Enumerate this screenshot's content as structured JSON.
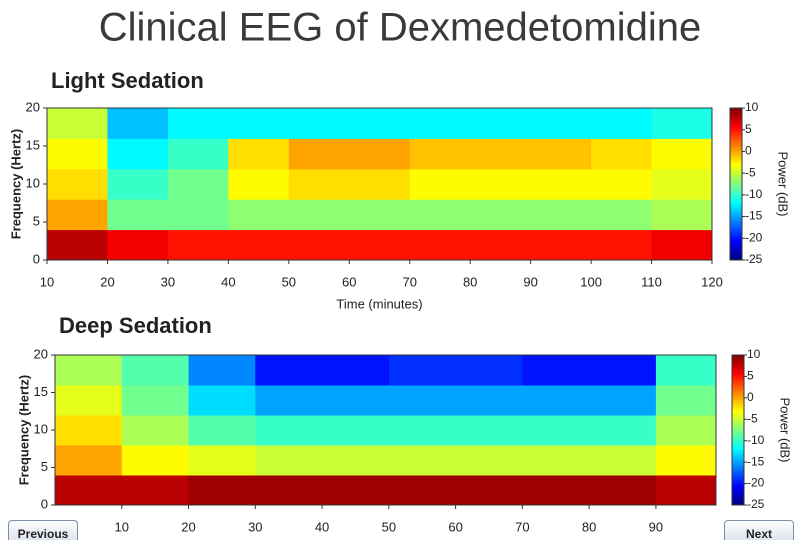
{
  "title": "Clinical EEG of Dexmedetomidine",
  "navigation": {
    "previous": "Previous",
    "next": "Next"
  },
  "chart_data": [
    {
      "type": "heatmap",
      "title": "Light Sedation",
      "ylabel": "Frequency (Hertz)",
      "xlabel": "Time (minutes)",
      "colormap": "jet",
      "xbins": [
        10,
        20,
        30,
        40,
        50,
        60,
        70,
        80,
        90,
        100,
        110,
        120
      ],
      "ybins": [
        0,
        4,
        8,
        12,
        16,
        20
      ],
      "values": [
        [
          8,
          6,
          5,
          5,
          5,
          5,
          5,
          5,
          5,
          5,
          6
        ],
        [
          0,
          -8,
          -8,
          -7,
          -7,
          -7,
          -7,
          -7,
          -7,
          -7,
          -6
        ],
        [
          -2,
          -10,
          -8,
          -3,
          -2,
          -2,
          -3,
          -3,
          -3,
          -3,
          -4
        ],
        [
          -3,
          -12,
          -10,
          -2,
          0,
          0,
          -1,
          -1,
          -1,
          -2,
          -3
        ],
        [
          -5,
          -14,
          -12,
          -12,
          -12,
          -12,
          -12,
          -12,
          -12,
          -12,
          -11
        ]
      ],
      "xlim": [
        10,
        120
      ],
      "xticks": [
        10,
        20,
        30,
        40,
        50,
        60,
        70,
        80,
        90,
        100,
        110,
        120
      ],
      "ylim": [
        0,
        20
      ],
      "yticks": [
        0,
        5,
        10,
        15,
        20
      ],
      "colorbar_label": "Power (dB)",
      "clim": [
        -25,
        10
      ],
      "cticks": [
        10,
        5,
        0,
        -5,
        -10,
        -15,
        -20,
        -25
      ]
    },
    {
      "type": "heatmap",
      "title": "Deep Sedation",
      "ylabel": "Frequency (Hertz)",
      "colormap": "jet",
      "xbins": [
        0,
        10,
        20,
        30,
        40,
        50,
        60,
        70,
        80,
        90,
        99
      ],
      "ybins": [
        0,
        4,
        8,
        12,
        16,
        20
      ],
      "values": [
        [
          8,
          8,
          9,
          9,
          9,
          9,
          9,
          9,
          9,
          8
        ],
        [
          0,
          -3,
          -4,
          -5,
          -5,
          -5,
          -5,
          -5,
          -5,
          -3
        ],
        [
          -2,
          -6,
          -9,
          -10,
          -10,
          -10,
          -10,
          -10,
          -10,
          -6
        ],
        [
          -4,
          -8,
          -13,
          -15,
          -15,
          -15,
          -15,
          -15,
          -15,
          -8
        ],
        [
          -6,
          -9,
          -16,
          -20,
          -20,
          -19,
          -19,
          -20,
          -20,
          -10
        ]
      ],
      "xlim": [
        0,
        99
      ],
      "xticks": [
        10,
        20,
        30,
        40,
        50,
        60,
        70,
        80,
        90
      ],
      "ylim": [
        0,
        20
      ],
      "yticks": [
        0,
        5,
        10,
        15,
        20
      ],
      "colorbar_label": "Power (dB)",
      "clim": [
        -25,
        10
      ],
      "cticks": [
        10,
        5,
        0,
        -5,
        -10,
        -15,
        -20,
        -25
      ]
    }
  ]
}
